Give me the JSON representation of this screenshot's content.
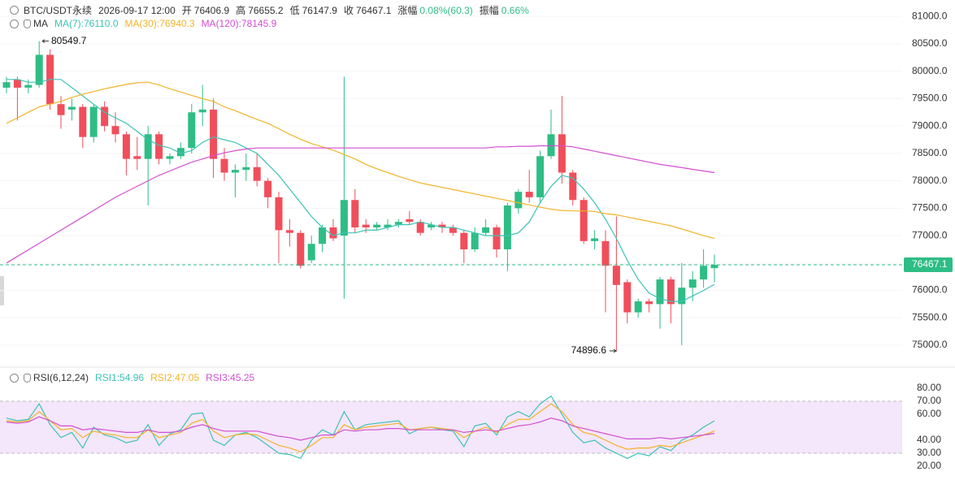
{
  "chart_data": [
    {
      "type": "candlestick",
      "header": [
        {
          "text": "BTC/USDT永续"
        },
        {
          "text": "2026-09-17 12:00"
        },
        {
          "label": "开",
          "value": "76406.9"
        },
        {
          "label": "高",
          "value": "76655.2"
        },
        {
          "label": "低",
          "value": "76147.9"
        },
        {
          "label": "收",
          "value": "76467.1"
        },
        {
          "label": "涨幅",
          "value": "0.08%(60.3)"
        },
        {
          "label": "振幅",
          "value": "0.66%"
        }
      ],
      "indicator": "MA",
      "up_color": "#2ebd85",
      "down_color": "#f04e5b",
      "open": [
        79700,
        79850,
        79700,
        79750,
        80300,
        79400,
        79300,
        79350,
        78800,
        79350,
        79000,
        78850,
        78450,
        78400,
        78850,
        78400,
        78450,
        78600,
        79250,
        79300,
        78400,
        78150,
        78200,
        78250,
        78000,
        77700,
        77100,
        77050,
        76550,
        76850,
        77150,
        77000,
        77650,
        77200,
        77150,
        77150,
        77200,
        77300,
        77250,
        77150,
        77200,
        77150,
        77050,
        76750,
        77050,
        77150,
        76750,
        77500,
        77800,
        77700,
        78450,
        78850,
        78150,
        77650,
        76900,
        76900,
        76450,
        76150,
        75600,
        75800,
        75750,
        76200,
        75750,
        76050,
        76200,
        76406.9
      ],
      "high": [
        79900,
        79900,
        79850,
        80549.7,
        80400,
        79550,
        79500,
        79400,
        79400,
        79450,
        79250,
        78900,
        78800,
        79000,
        78900,
        78500,
        78700,
        79400,
        79750,
        79500,
        78600,
        78300,
        78500,
        78500,
        78050,
        77800,
        77300,
        77100,
        77000,
        77200,
        77300,
        79900,
        77850,
        77300,
        77250,
        77300,
        77300,
        77450,
        77300,
        77250,
        77250,
        77200,
        77100,
        77150,
        77300,
        77200,
        77600,
        77850,
        78200,
        78550,
        79300,
        79550,
        78200,
        77700,
        77100,
        77100,
        77350,
        76200,
        75850,
        75850,
        76250,
        76250,
        76500,
        76350,
        76750,
        76655.2
      ],
      "low": [
        79600,
        79100,
        79600,
        79700,
        79300,
        78950,
        79100,
        78600,
        78700,
        78900,
        78700,
        78100,
        78200,
        77550,
        78300,
        78300,
        78400,
        78500,
        79000,
        78050,
        78000,
        77700,
        78000,
        77900,
        77500,
        76500,
        76800,
        76400,
        76500,
        76700,
        76900,
        75850,
        77050,
        77050,
        77100,
        77100,
        77150,
        77200,
        77000,
        77100,
        77050,
        77000,
        76500,
        76700,
        77000,
        76600,
        76350,
        77400,
        77600,
        77600,
        78400,
        77950,
        77550,
        76850,
        76750,
        75600,
        74896.6,
        75400,
        75500,
        75600,
        75300,
        75400,
        75000,
        75800,
        76050,
        76147.9
      ],
      "close": [
        79800,
        79700,
        79750,
        80300,
        79400,
        79200,
        79350,
        78800,
        79350,
        79000,
        78850,
        78400,
        78400,
        78850,
        78400,
        78450,
        78600,
        79250,
        79300,
        78400,
        78150,
        78200,
        78250,
        78000,
        77700,
        77100,
        77050,
        76450,
        76850,
        77150,
        76950,
        77650,
        77150,
        77150,
        77200,
        77200,
        77250,
        77250,
        77050,
        77200,
        77150,
        77050,
        76750,
        77050,
        77150,
        76750,
        77550,
        77800,
        77700,
        78450,
        78850,
        78150,
        77650,
        76900,
        76950,
        76450,
        76100,
        75600,
        75800,
        75750,
        76200,
        75750,
        76050,
        76200,
        76450,
        76467.1
      ],
      "series": [
        {
          "name": "MA(7):76110.0",
          "color": "#3cc3b5",
          "values": [
            79850,
            79850,
            79800,
            79800,
            79850,
            79850,
            79700,
            79550,
            79400,
            79250,
            79150,
            79050,
            78900,
            78750,
            78650,
            78600,
            78500,
            78550,
            78700,
            78800,
            78750,
            78700,
            78600,
            78500,
            78300,
            78100,
            77850,
            77600,
            77350,
            77150,
            77000,
            77050,
            77050,
            77100,
            77100,
            77150,
            77200,
            77200,
            77250,
            77200,
            77150,
            77150,
            77100,
            77050,
            77000,
            77000,
            77000,
            77050,
            77250,
            77600,
            77900,
            78100,
            78050,
            77850,
            77600,
            77300,
            76950,
            76550,
            76200,
            75950,
            75850,
            75800,
            75800,
            75900,
            76000,
            76110
          ]
        },
        {
          "name": "MA(30):76940.3",
          "color": "#f0b429",
          "values": [
            79050,
            79150,
            79250,
            79350,
            79400,
            79450,
            79520,
            79580,
            79630,
            79680,
            79720,
            79760,
            79790,
            79800,
            79750,
            79680,
            79620,
            79560,
            79500,
            79450,
            79350,
            79280,
            79200,
            79120,
            79050,
            78950,
            78850,
            78760,
            78680,
            78620,
            78560,
            78480,
            78400,
            78300,
            78220,
            78150,
            78080,
            78020,
            77960,
            77920,
            77880,
            77840,
            77800,
            77760,
            77720,
            77680,
            77640,
            77600,
            77560,
            77520,
            77480,
            77460,
            77450,
            77450,
            77440,
            77400,
            77380,
            77340,
            77300,
            77260,
            77220,
            77180,
            77120,
            77060,
            77000,
            76950
          ]
        },
        {
          "name": "MA(120):78145.9",
          "color": "#d24fd0",
          "values": [
            76500,
            76620,
            76740,
            76860,
            76980,
            77100,
            77220,
            77340,
            77460,
            77580,
            77700,
            77800,
            77900,
            78000,
            78100,
            78180,
            78260,
            78340,
            78400,
            78460,
            78510,
            78550,
            78580,
            78600,
            78600,
            78600,
            78600,
            78600,
            78600,
            78600,
            78600,
            78600,
            78600,
            78600,
            78600,
            78600,
            78600,
            78600,
            78600,
            78600,
            78600,
            78600,
            78600,
            78600,
            78600,
            78620,
            78620,
            78630,
            78630,
            78640,
            78640,
            78640,
            78620,
            78580,
            78540,
            78500,
            78460,
            78420,
            78380,
            78340,
            78300,
            78270,
            78240,
            78210,
            78180,
            78150
          ]
        }
      ],
      "ylim": [
        74630,
        81300
      ],
      "yticks": [
        {
          "value": 81000,
          "label": "81000.0"
        },
        {
          "value": 80500,
          "label": "80500.0"
        },
        {
          "value": 80000,
          "label": "80000.0"
        },
        {
          "value": 79500,
          "label": "79500.0"
        },
        {
          "value": 79000,
          "label": "79000.0"
        },
        {
          "value": 78500,
          "label": "78500.0"
        },
        {
          "value": 78000,
          "label": "78000.0"
        },
        {
          "value": 77500,
          "label": "77500.0"
        },
        {
          "value": 77000,
          "label": "77000.0"
        },
        {
          "value": 76500,
          "label": "76500.0"
        },
        {
          "value": 76000,
          "label": "76000.0"
        },
        {
          "value": 75500,
          "label": "75500.0"
        },
        {
          "value": 75000,
          "label": "75000.0"
        }
      ],
      "grid": true,
      "max_marker": 80549.7,
      "min_marker": 74896.6,
      "current_price": 76467.1,
      "current_color": "#2ebd85"
    },
    {
      "type": "line",
      "indicator": "RSI(6,12,24)",
      "series": [
        {
          "name": "RSI1:54.96",
          "color": "#3cc3b5",
          "values": [
            57,
            55,
            56,
            68,
            52,
            42,
            46,
            34,
            50,
            44,
            42,
            38,
            40,
            52,
            36,
            45,
            48,
            60,
            61,
            40,
            36,
            44,
            46,
            42,
            36,
            30,
            29,
            26,
            40,
            48,
            44,
            62,
            48,
            52,
            53,
            54,
            55,
            45,
            49,
            50,
            48,
            47,
            35,
            51,
            53,
            44,
            58,
            62,
            58,
            68,
            74,
            60,
            46,
            38,
            40,
            34,
            30,
            26,
            30,
            28,
            35,
            32,
            40,
            44,
            50,
            54.96
          ]
        },
        {
          "name": "RSI2:47.05",
          "color": "#f0b429",
          "values": [
            55,
            54,
            55,
            62,
            55,
            48,
            49,
            42,
            47,
            45,
            44,
            42,
            42,
            48,
            42,
            44,
            46,
            53,
            56,
            47,
            42,
            44,
            45,
            44,
            40,
            36,
            34,
            31,
            36,
            42,
            42,
            52,
            48,
            50,
            51,
            52,
            53,
            48,
            49,
            50,
            49,
            48,
            42,
            47,
            50,
            46,
            52,
            56,
            56,
            62,
            68,
            62,
            52,
            46,
            44,
            40,
            36,
            33,
            34,
            34,
            36,
            35,
            38,
            41,
            44,
            47.05
          ]
        },
        {
          "name": "RSI3:45.25",
          "color": "#d24fd0",
          "values": [
            54,
            53,
            54,
            58,
            55,
            51,
            51,
            48,
            49,
            48,
            47,
            46,
            46,
            48,
            46,
            46,
            47,
            50,
            52,
            49,
            47,
            47,
            47,
            47,
            45,
            43,
            42,
            40,
            42,
            44,
            44,
            48,
            47,
            48,
            48,
            49,
            49,
            48,
            48,
            48,
            48,
            48,
            46,
            47,
            48,
            47,
            49,
            51,
            52,
            54,
            57,
            55,
            51,
            49,
            47,
            45,
            43,
            41,
            41,
            41,
            42,
            41,
            42,
            43,
            44,
            45.25
          ]
        }
      ],
      "ylim": [
        9.4,
        92.5
      ],
      "yticks": [
        {
          "value": 80,
          "label": "80.00"
        },
        {
          "value": 70,
          "label": "70.00"
        },
        {
          "value": 60,
          "label": "60.00"
        },
        {
          "value": 40,
          "label": "40.00"
        },
        {
          "value": 30,
          "label": "30.00"
        },
        {
          "value": 20,
          "label": "20.00"
        }
      ],
      "band": [
        30,
        70
      ],
      "band_color": "#f4e6fb"
    }
  ]
}
